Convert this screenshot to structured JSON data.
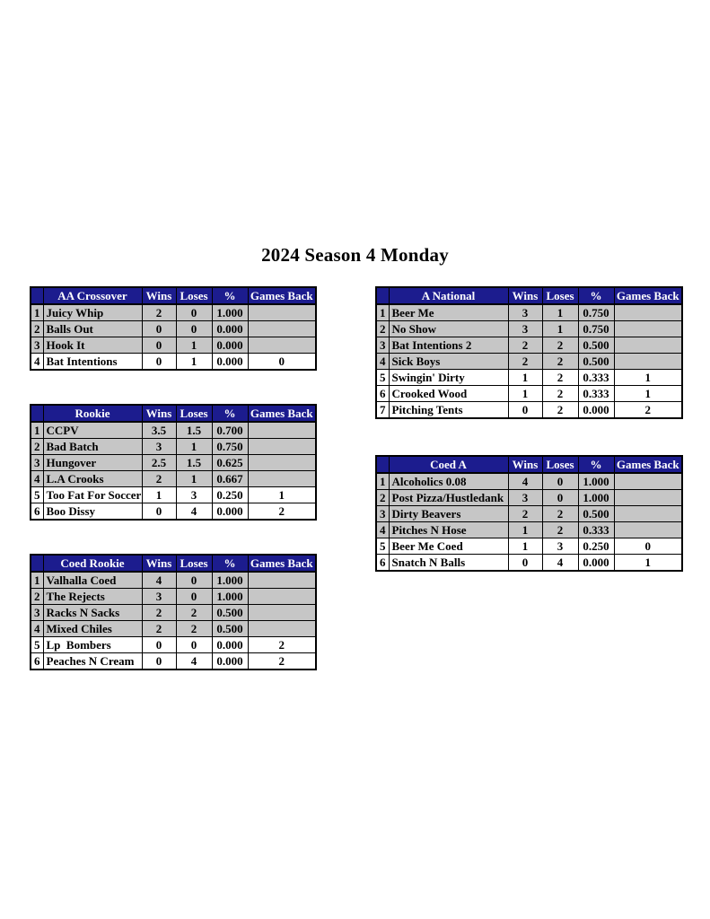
{
  "page": {
    "title": "2024 Season 4 Monday"
  },
  "colors": {
    "header_bg": "#1c1c8e",
    "header_text": "#ffffff",
    "shaded_row_bg": "#c6c6c6",
    "plain_row_bg": "#ffffff",
    "border": "#000000"
  },
  "column_headers": {
    "wins": "Wins",
    "loses": "Loses",
    "pct": "%",
    "games_back": "Games Back"
  },
  "tables": [
    {
      "name": "AA Crossover",
      "rows": [
        {
          "rank": "1",
          "team": "Juicy Whip",
          "wins": "2",
          "loses": "0",
          "pct": "1.000",
          "games_back": "",
          "shaded": true
        },
        {
          "rank": "2",
          "team": "Balls Out",
          "wins": "0",
          "loses": "0",
          "pct": "0.000",
          "games_back": "",
          "shaded": true
        },
        {
          "rank": "3",
          "team": "Hook It",
          "wins": "0",
          "loses": "1",
          "pct": "0.000",
          "games_back": "",
          "shaded": true
        },
        {
          "rank": "4",
          "team": "Bat Intentions",
          "wins": "0",
          "loses": "1",
          "pct": "0.000",
          "games_back": "0",
          "shaded": false
        }
      ]
    },
    {
      "name": "A National",
      "rows": [
        {
          "rank": "1",
          "team": "Beer Me",
          "wins": "3",
          "loses": "1",
          "pct": "0.750",
          "games_back": "",
          "shaded": true
        },
        {
          "rank": "2",
          "team": "No Show",
          "wins": "3",
          "loses": "1",
          "pct": "0.750",
          "games_back": "",
          "shaded": true
        },
        {
          "rank": "3",
          "team": "Bat Intentions 2",
          "wins": "2",
          "loses": "2",
          "pct": "0.500",
          "games_back": "",
          "shaded": true
        },
        {
          "rank": "4",
          "team": "Sick Boys",
          "wins": "2",
          "loses": "2",
          "pct": "0.500",
          "games_back": "",
          "shaded": true
        },
        {
          "rank": "5",
          "team": "Swingin' Dirty",
          "wins": "1",
          "loses": "2",
          "pct": "0.333",
          "games_back": "1",
          "shaded": false
        },
        {
          "rank": "6",
          "team": "Crooked Wood",
          "wins": "1",
          "loses": "2",
          "pct": "0.333",
          "games_back": "1",
          "shaded": false
        },
        {
          "rank": "7",
          "team": "Pitching Tents",
          "wins": "0",
          "loses": "2",
          "pct": "0.000",
          "games_back": "2",
          "shaded": false
        }
      ]
    },
    {
      "name": "Rookie",
      "rows": [
        {
          "rank": "1",
          "team": "CCPV",
          "wins": "3.5",
          "loses": "1.5",
          "pct": "0.700",
          "games_back": "",
          "shaded": true
        },
        {
          "rank": "2",
          "team": "Bad Batch",
          "wins": "3",
          "loses": "1",
          "pct": "0.750",
          "games_back": "",
          "shaded": true
        },
        {
          "rank": "3",
          "team": "Hungover",
          "wins": "2.5",
          "loses": "1.5",
          "pct": "0.625",
          "games_back": "",
          "shaded": true
        },
        {
          "rank": "4",
          "team": "L.A Crooks",
          "wins": "2",
          "loses": "1",
          "pct": "0.667",
          "games_back": "",
          "shaded": true
        },
        {
          "rank": "5",
          "team": "Too Fat For Soccer",
          "wins": "1",
          "loses": "3",
          "pct": "0.250",
          "games_back": "1",
          "shaded": false
        },
        {
          "rank": "6",
          "team": "Boo Dissy",
          "wins": "0",
          "loses": "4",
          "pct": "0.000",
          "games_back": "2",
          "shaded": false
        }
      ]
    },
    {
      "name": "Coed A",
      "rows": [
        {
          "rank": "1",
          "team": "Alcoholics 0.08",
          "wins": "4",
          "loses": "0",
          "pct": "1.000",
          "games_back": "",
          "shaded": true
        },
        {
          "rank": "2",
          "team": "Post Pizza/Hustledank",
          "wins": "3",
          "loses": "0",
          "pct": "1.000",
          "games_back": "",
          "shaded": true
        },
        {
          "rank": "3",
          "team": "Dirty Beavers",
          "wins": "2",
          "loses": "2",
          "pct": "0.500",
          "games_back": "",
          "shaded": true
        },
        {
          "rank": "4",
          "team": "Pitches N Hose",
          "wins": "1",
          "loses": "2",
          "pct": "0.333",
          "games_back": "",
          "shaded": true
        },
        {
          "rank": "5",
          "team": "Beer Me Coed",
          "wins": "1",
          "loses": "3",
          "pct": "0.250",
          "games_back": "0",
          "shaded": false
        },
        {
          "rank": "6",
          "team": "Snatch N Balls",
          "wins": "0",
          "loses": "4",
          "pct": "0.000",
          "games_back": "1",
          "shaded": false
        }
      ]
    },
    {
      "name": "Coed Rookie",
      "rows": [
        {
          "rank": "1",
          "team": "Valhalla Coed",
          "wins": "4",
          "loses": "0",
          "pct": "1.000",
          "games_back": "",
          "shaded": true
        },
        {
          "rank": "2",
          "team": "The Rejects",
          "wins": "3",
          "loses": "0",
          "pct": "1.000",
          "games_back": "",
          "shaded": true
        },
        {
          "rank": "3",
          "team": "Racks N Sacks",
          "wins": "2",
          "loses": "2",
          "pct": "0.500",
          "games_back": "",
          "shaded": true
        },
        {
          "rank": "4",
          "team": "Mixed Chiles",
          "wins": "2",
          "loses": "2",
          "pct": "0.500",
          "games_back": "",
          "shaded": true
        },
        {
          "rank": "5",
          "team": "Lp  Bombers",
          "wins": "0",
          "loses": "0",
          "pct": "0.000",
          "games_back": "2",
          "shaded": false
        },
        {
          "rank": "6",
          "team": "Peaches N Cream",
          "wins": "0",
          "loses": "4",
          "pct": "0.000",
          "games_back": "2",
          "shaded": false
        }
      ]
    }
  ]
}
